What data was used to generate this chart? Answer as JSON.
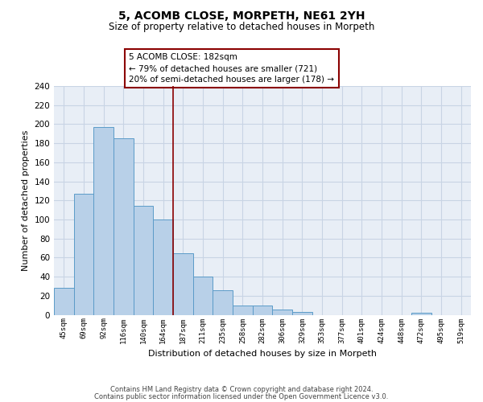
{
  "title": "5, ACOMB CLOSE, MORPETH, NE61 2YH",
  "subtitle": "Size of property relative to detached houses in Morpeth",
  "xlabel": "Distribution of detached houses by size in Morpeth",
  "ylabel": "Number of detached properties",
  "bin_labels": [
    "45sqm",
    "69sqm",
    "92sqm",
    "116sqm",
    "140sqm",
    "164sqm",
    "187sqm",
    "211sqm",
    "235sqm",
    "258sqm",
    "282sqm",
    "306sqm",
    "329sqm",
    "353sqm",
    "377sqm",
    "401sqm",
    "424sqm",
    "448sqm",
    "472sqm",
    "495sqm",
    "519sqm"
  ],
  "bar_heights": [
    28,
    127,
    197,
    185,
    114,
    100,
    65,
    40,
    26,
    10,
    10,
    6,
    3,
    0,
    0,
    0,
    0,
    0,
    2,
    0,
    0
  ],
  "bar_color": "#b8d0e8",
  "bar_edge_color": "#5b9bc8",
  "vline_color": "#8b0000",
  "annotation_line1": "5 ACOMB CLOSE: 182sqm",
  "annotation_line2": "← 79% of detached houses are smaller (721)",
  "annotation_line3": "20% of semi-detached houses are larger (178) →",
  "annotation_box_color": "#ffffff",
  "annotation_box_edge": "#8b0000",
  "ylim": [
    0,
    240
  ],
  "yticks": [
    0,
    20,
    40,
    60,
    80,
    100,
    120,
    140,
    160,
    180,
    200,
    220,
    240
  ],
  "footer_line1": "Contains HM Land Registry data © Crown copyright and database right 2024.",
  "footer_line2": "Contains public sector information licensed under the Open Government Licence v3.0.",
  "grid_color": "#c8d4e4",
  "background_color": "#e8eef6"
}
